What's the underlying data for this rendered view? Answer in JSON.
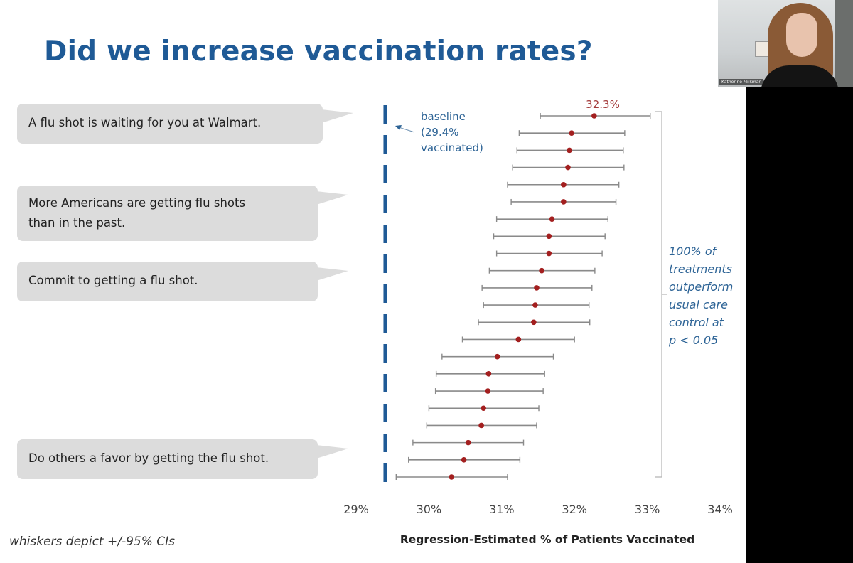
{
  "slide": {
    "title": "Did we increase vaccination rates?",
    "footnote": "whiskers depict +/-95% CIs",
    "messages": [
      {
        "lines": [
          "A flu shot is waiting for you at Walmart."
        ]
      },
      {
        "lines": [
          "More Americans are getting flu shots",
          "than in the past."
        ]
      },
      {
        "lines": [
          "Commit to getting a flu shot."
        ]
      },
      {
        "lines": [
          "Do others a favor by getting the flu shot."
        ]
      }
    ]
  },
  "video": {
    "participant_name": "Katherine Milkman"
  },
  "colors": {
    "title": "#1f5a96",
    "baseline": "#1f5a96",
    "point": "#a31f1f",
    "whisker": "#8a8a8a",
    "annotation": "#2e6496",
    "bubble": "#dcdcdc"
  },
  "chart_data": {
    "type": "scatter",
    "subtype": "forest-plot",
    "title": "",
    "xlabel": "Regression-Estimated % of Patients Vaccinated",
    "ylabel": "",
    "xlim": [
      29,
      34
    ],
    "xticks": [
      29,
      30,
      31,
      32,
      33,
      34
    ],
    "xtick_labels": [
      "29%",
      "30%",
      "31%",
      "32%",
      "33%",
      "34%"
    ],
    "grid": false,
    "baseline": {
      "value": 29.4,
      "style": "dashed",
      "label_lines": [
        "baseline",
        "(29.4%",
        "vaccinated)"
      ]
    },
    "top_label": "32.3%",
    "annotation_lines": [
      "100% of",
      "treatments",
      "outperform",
      "usual care",
      "control at",
      "p < 0.05"
    ],
    "series": [
      {
        "name": "treatments",
        "estimates": [
          32.27,
          31.96,
          31.93,
          31.91,
          31.85,
          31.85,
          31.69,
          31.65,
          31.65,
          31.55,
          31.48,
          31.46,
          31.44,
          31.23,
          30.94,
          30.82,
          30.81,
          30.75,
          30.72,
          30.54,
          30.48,
          30.31
        ],
        "ci_low": [
          31.53,
          31.24,
          31.21,
          31.15,
          31.08,
          31.13,
          30.93,
          30.89,
          30.93,
          30.83,
          30.73,
          30.75,
          30.68,
          30.46,
          30.18,
          30.1,
          30.09,
          30.0,
          29.97,
          29.78,
          29.72,
          29.55
        ],
        "ci_high": [
          33.04,
          32.69,
          32.67,
          32.68,
          32.61,
          32.57,
          32.46,
          32.42,
          32.38,
          32.28,
          32.24,
          32.2,
          32.21,
          32.0,
          31.71,
          31.59,
          31.57,
          31.51,
          31.48,
          31.3,
          31.25,
          31.08
        ]
      }
    ]
  }
}
